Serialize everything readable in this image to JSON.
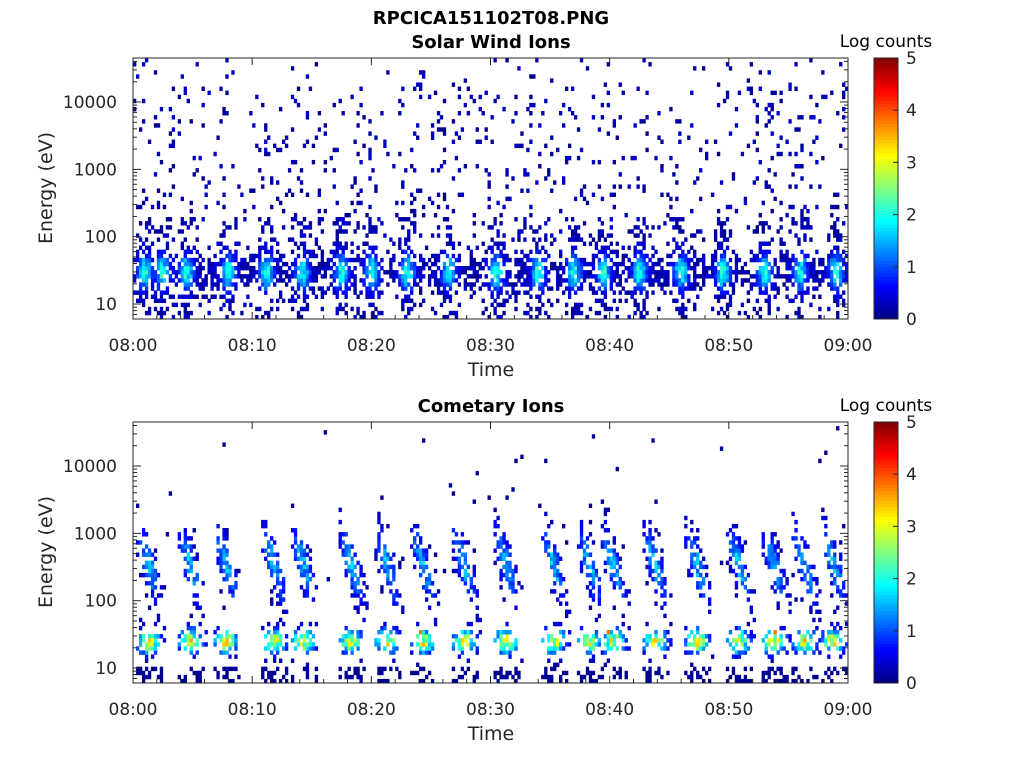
{
  "figure_title": "RPCICA151102T08.PNG",
  "colorscale": [
    "#00007f",
    "#0000ff",
    "#0080ff",
    "#00ffff",
    "#80ff80",
    "#ffff00",
    "#ff8000",
    "#ff0000",
    "#7f0000"
  ],
  "chart_data": [
    {
      "type": "heatmap",
      "title": "Solar Wind Ions",
      "xlabel": "Time",
      "ylabel": "Energy (eV)",
      "x_range": [
        "08:00",
        "09:00"
      ],
      "x_ticks": [
        "08:00",
        "08:10",
        "08:20",
        "08:30",
        "08:40",
        "08:50",
        "09:00"
      ],
      "y_scale": "log",
      "y_range_ev": [
        6,
        45000
      ],
      "y_ticks": [
        10,
        100,
        1000,
        10000
      ],
      "y_tick_labels": [
        "10",
        "100",
        "1000",
        "10000"
      ],
      "colorbar": {
        "label": "Log counts",
        "range": [
          0,
          5
        ],
        "ticks": [
          "0",
          "1",
          "2",
          "3",
          "4",
          "5"
        ]
      },
      "peak_energy_ev": 30,
      "peak_log_counts": 2.0,
      "background_log_counts": 0.1,
      "bursts_minutes": [
        1,
        2.5,
        4.5,
        8,
        11.2,
        14.2,
        17.5,
        20,
        23,
        26.5,
        30.5,
        34,
        37,
        39.5,
        42.5,
        46,
        49.5,
        53,
        56,
        59
      ]
    },
    {
      "type": "heatmap",
      "title": "Cometary Ions",
      "xlabel": "Time",
      "ylabel": "Energy (eV)",
      "x_range": [
        "08:00",
        "09:00"
      ],
      "x_ticks": [
        "08:00",
        "08:10",
        "08:20",
        "08:30",
        "08:40",
        "08:50",
        "09:00"
      ],
      "y_scale": "log",
      "y_range_ev": [
        6,
        45000
      ],
      "y_ticks": [
        10,
        100,
        1000,
        10000
      ],
      "y_tick_labels": [
        "10",
        "100",
        "1000",
        "10000"
      ],
      "colorbar": {
        "label": "Log counts",
        "range": [
          0,
          5
        ],
        "ticks": [
          "0",
          "1",
          "2",
          "3",
          "4",
          "5"
        ]
      },
      "peak_energy_ev": 25,
      "peak_log_counts": 3.3,
      "max_log_counts": 3.8,
      "dispersed_bursts_minutes": [
        0.5,
        4,
        7,
        11,
        13.5,
        17.5,
        20.5,
        23.5,
        27,
        30.5,
        34.5,
        37.5,
        39.5,
        43,
        46.5,
        50,
        53,
        55.5,
        58
      ]
    }
  ]
}
